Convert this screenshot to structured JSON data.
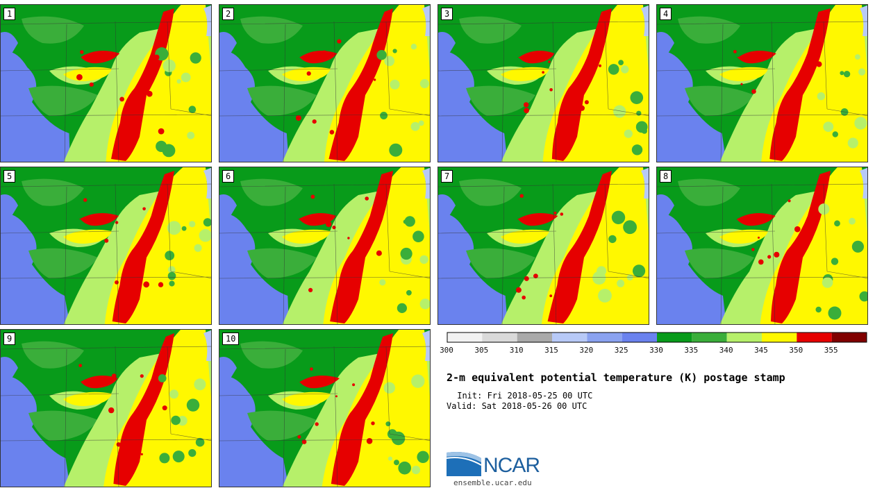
{
  "chart_data": {
    "type": "heatmap",
    "title": "2-m equivalent potential temperature (K) postage stamp",
    "init": " Init: Fri 2018-05-25 00 UTC",
    "valid": "Valid: Sat 2018-05-26 00 UTC",
    "members": [
      "1",
      "2",
      "3",
      "4",
      "5",
      "6",
      "7",
      "8",
      "9",
      "10"
    ],
    "colorbar": {
      "levels": [
        300,
        305,
        310,
        315,
        320,
        325,
        330,
        335,
        340,
        345,
        350,
        355,
        360
      ],
      "tick_labels": [
        "300",
        "305",
        "310",
        "315",
        "320",
        "325",
        "330",
        "335",
        "340",
        "345",
        "350",
        "355"
      ],
      "colors": [
        "#f2f2f2",
        "#d9d9d9",
        "#a9a9a9",
        "#b7c9f7",
        "#8aa2f0",
        "#6a82ee",
        "#089b1a",
        "#3aae3a",
        "#b6f06a",
        "#fff800",
        "#e60000",
        "#800000"
      ]
    }
  },
  "branding": {
    "logo_text": "NCAR",
    "url": "ensemble.ucar.edu"
  }
}
